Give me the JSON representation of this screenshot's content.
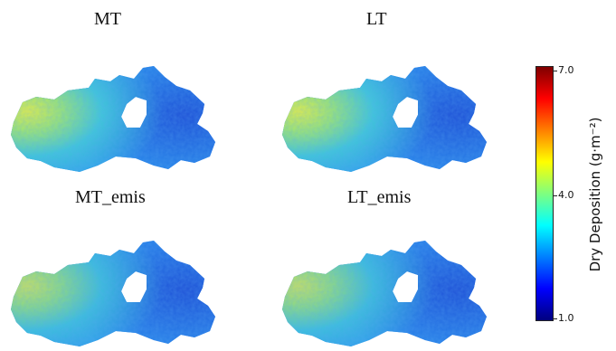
{
  "panels": [
    {
      "title": "MT"
    },
    {
      "title": "LT"
    },
    {
      "title": "MT_emis"
    },
    {
      "title": "LT_emis"
    }
  ],
  "colorbar": {
    "label": "Dry Deposition  (g·m⁻²)",
    "ticks": [
      "7.0",
      "4.0",
      "1.0"
    ],
    "colormap": "jet",
    "colors": [
      "#00007f",
      "#0000ff",
      "#007fff",
      "#00ffff",
      "#7fff7f",
      "#ffff00",
      "#ff7f00",
      "#ff0000",
      "#7f0000"
    ]
  },
  "map_colors": {
    "base_blue": "#2f7ef0",
    "light_blue": "#26b8ec",
    "green": "#5fd68f",
    "yellow": "#c6e84a",
    "dark_blue": "#1f55d8"
  }
}
